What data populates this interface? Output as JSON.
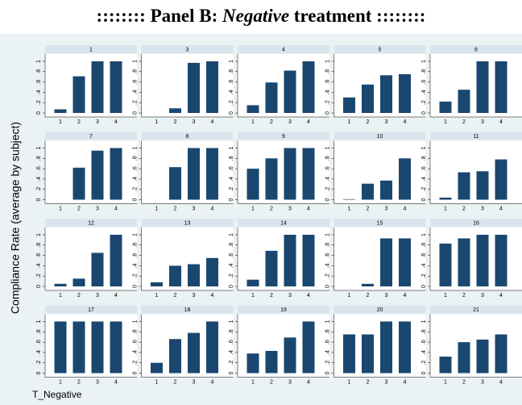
{
  "chart_data": {
    "type": "bar",
    "title_parts": [
      ":::::::: Panel B: ",
      "Negative",
      " treatment ::::::::"
    ],
    "ylabel": "Compliance Rate (average by subject)",
    "xlabel": "T_Negative",
    "categories": [
      "1",
      "2",
      "3",
      "4"
    ],
    "ylim": [
      0,
      1
    ],
    "yticks": [
      0,
      {
        "value": 0.2,
        "label": ".2"
      },
      {
        "value": 0.4,
        "label": ".4"
      },
      {
        "value": 0.6,
        "label": ".6"
      },
      {
        "value": 0.8,
        "label": ".8"
      },
      1
    ],
    "color": "#1a476f",
    "panels": [
      {
        "title": "1",
        "values": [
          0.07,
          0.71,
          1,
          1
        ]
      },
      {
        "title": "3",
        "values": [
          0,
          0.09,
          0.97,
          1
        ]
      },
      {
        "title": "4",
        "values": [
          0.15,
          0.59,
          0.82,
          1
        ]
      },
      {
        "title": "5",
        "values": [
          0.3,
          0.55,
          0.73,
          0.75
        ]
      },
      {
        "title": "6",
        "values": [
          0.22,
          0.45,
          1,
          1
        ]
      },
      {
        "title": "7",
        "values": [
          0,
          0.62,
          0.95,
          1
        ]
      },
      {
        "title": "8",
        "values": [
          0,
          0.63,
          1,
          1
        ]
      },
      {
        "title": "9",
        "values": [
          0.6,
          0.8,
          1,
          1
        ]
      },
      {
        "title": "10",
        "values": [
          0.01,
          0.31,
          0.37,
          0.8
        ]
      },
      {
        "title": "11",
        "values": [
          0.04,
          0.53,
          0.55,
          0.78
        ]
      },
      {
        "title": "12",
        "values": [
          0.05,
          0.15,
          0.65,
          1
        ]
      },
      {
        "title": "13",
        "values": [
          0.08,
          0.4,
          0.43,
          0.55
        ]
      },
      {
        "title": "14",
        "values": [
          0.13,
          0.69,
          1,
          1
        ]
      },
      {
        "title": "15",
        "values": [
          0,
          0.05,
          0.93,
          0.93
        ]
      },
      {
        "title": "16",
        "values": [
          0.83,
          0.93,
          1,
          1
        ]
      },
      {
        "title": "17",
        "values": [
          1,
          1,
          1,
          1
        ]
      },
      {
        "title": "18",
        "values": [
          0.2,
          0.66,
          0.78,
          1
        ]
      },
      {
        "title": "19",
        "values": [
          0.38,
          0.43,
          0.69,
          1
        ]
      },
      {
        "title": "20",
        "values": [
          0.75,
          0.75,
          1,
          1
        ]
      },
      {
        "title": "21",
        "values": [
          0.32,
          0.6,
          0.65,
          0.75
        ]
      }
    ]
  }
}
